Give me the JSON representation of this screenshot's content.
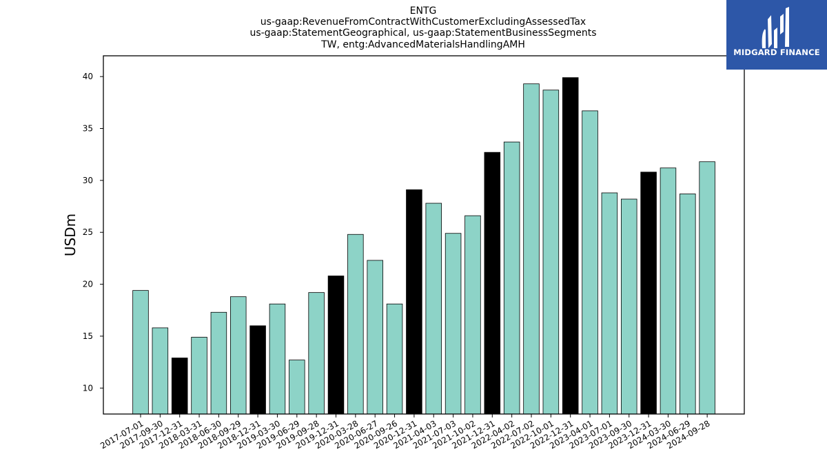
{
  "chart_data": {
    "type": "bar",
    "title_lines": [
      "ENTG",
      "us-gaap:RevenueFromContractWithCustomerExcludingAssessedTax",
      "us-gaap:StatementGeographical, us-gaap:StatementBusinessSegments",
      "TW, entg:AdvancedMaterialsHandlingAMH"
    ],
    "ylabel": "USDm",
    "xlabel": "",
    "ylim": [
      7.5,
      42
    ],
    "yticks": [
      10,
      15,
      20,
      25,
      30,
      35,
      40
    ],
    "categories": [
      "2017-07-01",
      "2017-09-30",
      "2017-12-31",
      "2018-03-31",
      "2018-06-30",
      "2018-09-29",
      "2018-12-31",
      "2019-03-30",
      "2019-06-29",
      "2019-09-28",
      "2019-12-31",
      "2020-03-28",
      "2020-06-27",
      "2020-09-26",
      "2020-12-31",
      "2021-04-03",
      "2021-07-03",
      "2021-10-02",
      "2021-12-31",
      "2022-04-02",
      "2022-07-02",
      "2022-10-01",
      "2022-12-31",
      "2023-04-01",
      "2023-07-01",
      "2023-09-30",
      "2023-12-31",
      "2024-03-30",
      "2024-06-29",
      "2024-09-28"
    ],
    "values": [
      19.4,
      15.8,
      12.9,
      14.9,
      17.3,
      18.8,
      16.0,
      18.1,
      12.7,
      19.2,
      20.8,
      24.8,
      22.3,
      18.1,
      29.1,
      27.8,
      24.9,
      26.6,
      32.7,
      33.7,
      39.3,
      38.7,
      39.9,
      36.7,
      28.8,
      28.2,
      30.8,
      31.2,
      28.7,
      31.8
    ],
    "highlight": [
      false,
      false,
      true,
      false,
      false,
      false,
      true,
      false,
      false,
      false,
      true,
      false,
      false,
      false,
      true,
      false,
      false,
      false,
      true,
      false,
      false,
      false,
      true,
      false,
      false,
      false,
      true,
      false,
      false,
      false
    ],
    "colors": {
      "bar": "#8dd3c7",
      "highlight_bar": "#000000",
      "edge": "#000000"
    },
    "grid": false,
    "legend": "none"
  },
  "logo": {
    "text": "MIDGARD FINANCE",
    "bg": "#2d57a8"
  }
}
